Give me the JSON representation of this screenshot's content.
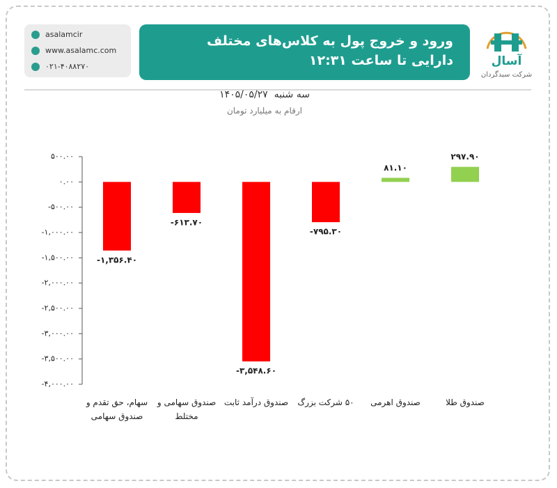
{
  "header": {
    "contact": [
      "asalamcir",
      "www.asalamc.com",
      "۰۲۱-۴۰۸۸۲۷۰"
    ],
    "logo_name": "آسال",
    "logo_tagline": "شرکت سبدگردان"
  },
  "chart_data": {
    "type": "bar",
    "title": "ورود و خروج پول به کلاس‌های مختلف دارایی تا ساعت ۱۲:۳۱",
    "weekday": "سه شنبه",
    "date": "۱۴۰۵/۰۵/۲۷",
    "subtitle": "ارقام به میلیارد تومان",
    "categories": [
      "سهام، حق تقدم و صندوق سهامی",
      "صندوق سهامی و مختلط",
      "صندوق درآمد ثابت",
      "۵۰ شرکت بزرگ",
      "صندوق اهرمی",
      "صندوق طلا"
    ],
    "values": [
      -1356.4,
      -613.7,
      -3548.6,
      -795.3,
      81.1,
      297.9
    ],
    "value_labels": [
      "-۱,۳۵۶.۴۰",
      "-۶۱۳.۷۰",
      "-۳,۵۴۸.۶۰",
      "-۷۹۵.۳۰",
      "۸۱.۱۰",
      "۲۹۷.۹۰"
    ],
    "colors": [
      "#ff0000",
      "#ff0000",
      "#ff0000",
      "#ff0000",
      "#92d050",
      "#92d050"
    ],
    "ylim": [
      -4000,
      500
    ],
    "yticks": [
      {
        "value": 500,
        "label": "۵۰۰.۰۰"
      },
      {
        "value": 0,
        "label": "۰.۰۰"
      },
      {
        "value": -500,
        "label": "-۵۰۰.۰۰"
      },
      {
        "value": -1000,
        "label": "-۱,۰۰۰.۰۰"
      },
      {
        "value": -1500,
        "label": "-۱,۵۰۰.۰۰"
      },
      {
        "value": -2000,
        "label": "-۲,۰۰۰.۰۰"
      },
      {
        "value": -2500,
        "label": "-۲,۵۰۰.۰۰"
      },
      {
        "value": -3000,
        "label": "-۳,۰۰۰.۰۰"
      },
      {
        "value": -3500,
        "label": "-۳,۵۰۰.۰۰"
      },
      {
        "value": -4000,
        "label": "-۴,۰۰۰.۰۰"
      }
    ],
    "grid": false
  }
}
